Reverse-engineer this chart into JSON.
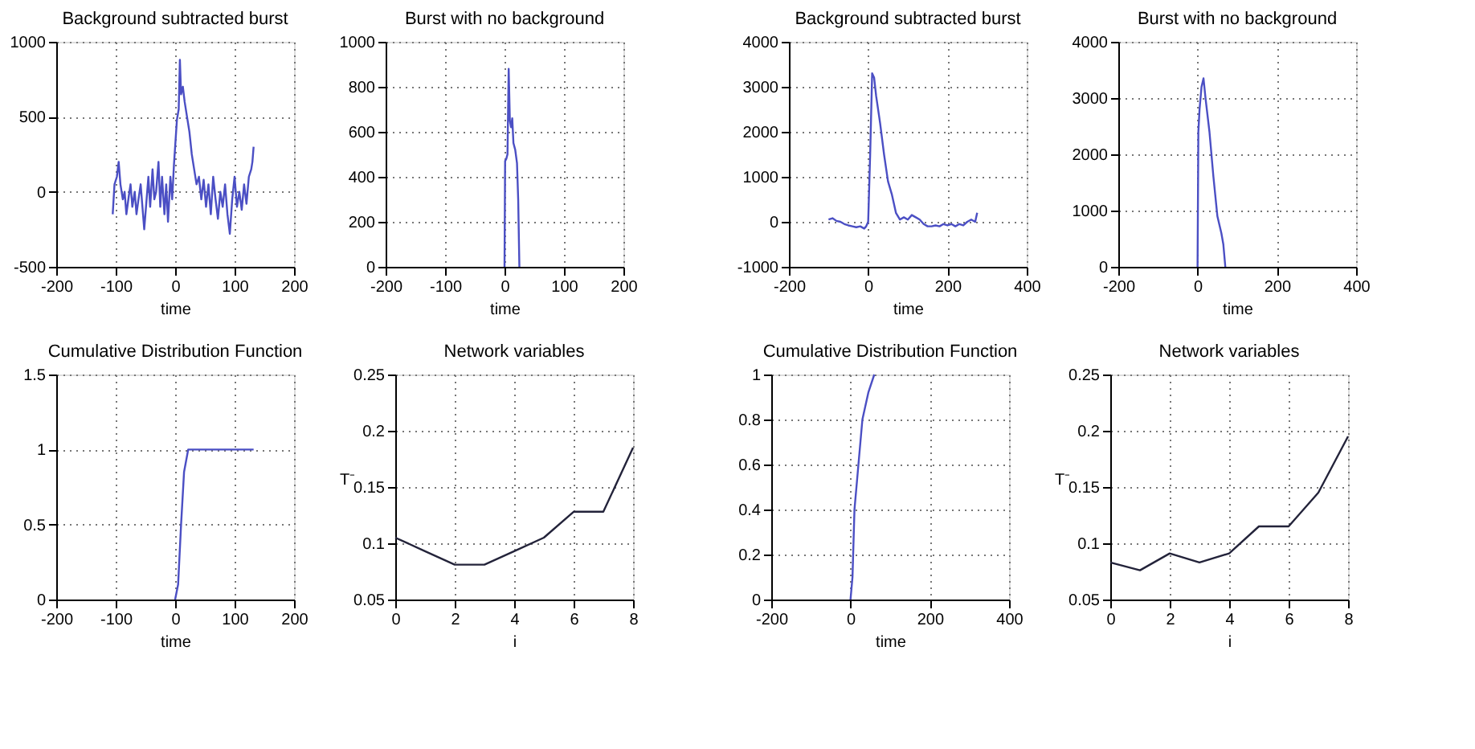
{
  "chart_data": [
    {
      "type": "line",
      "title": "Background subtracted burst",
      "xlabel": "time",
      "xlim": [
        -200,
        200
      ],
      "xticks": [
        -200,
        -100,
        0,
        100,
        200
      ],
      "ylim": [
        -500,
        1000
      ],
      "yticks": [
        -500,
        0,
        500,
        1000
      ],
      "grid": true,
      "series": [
        {
          "color": "#4b4fc4",
          "x": [
            -105,
            -102,
            -98,
            -95,
            -92,
            -88,
            -85,
            -82,
            -78,
            -75,
            -72,
            -68,
            -65,
            -62,
            -58,
            -55,
            -52,
            -48,
            -45,
            -42,
            -38,
            -35,
            -32,
            -28,
            -25,
            -22,
            -18,
            -15,
            -12,
            -8,
            -5,
            -2,
            0,
            3,
            6,
            8,
            10,
            13,
            16,
            20,
            24,
            28,
            32,
            36,
            40,
            44,
            48,
            52,
            56,
            60,
            64,
            68,
            72,
            76,
            80,
            84,
            88,
            92,
            96,
            100,
            104,
            108,
            112,
            116,
            120,
            124,
            128,
            130,
            132
          ],
          "values": [
            -150,
            50,
            100,
            200,
            50,
            -50,
            0,
            -150,
            -30,
            50,
            -100,
            0,
            -150,
            -60,
            50,
            -100,
            -250,
            -50,
            100,
            -100,
            150,
            -50,
            0,
            200,
            -100,
            100,
            -150,
            50,
            -200,
            100,
            -50,
            180,
            300,
            480,
            550,
            880,
            650,
            700,
            600,
            500,
            400,
            250,
            150,
            50,
            100,
            -50,
            80,
            -100,
            50,
            -150,
            100,
            -50,
            -180,
            0,
            -100,
            50,
            -150,
            -280,
            -50,
            100,
            -100,
            0,
            -120,
            50,
            -80,
            100,
            150,
            200,
            300
          ]
        }
      ]
    },
    {
      "type": "line",
      "title": "Burst with no background",
      "xlabel": "time",
      "xlim": [
        -200,
        200
      ],
      "xticks": [
        -200,
        -100,
        0,
        100,
        200
      ],
      "ylim": [
        0,
        1000
      ],
      "yticks": [
        0,
        200,
        400,
        600,
        800,
        1000
      ],
      "grid": true,
      "series": [
        {
          "color": "#4b4fc4",
          "x": [
            0,
            1,
            3,
            5,
            7,
            9,
            11,
            13,
            15,
            18,
            21,
            23,
            25
          ],
          "values": [
            0,
            470,
            480,
            500,
            880,
            650,
            620,
            660,
            550,
            520,
            460,
            300,
            0
          ]
        }
      ]
    },
    {
      "type": "line",
      "title": "Background subtracted burst",
      "xlabel": "time",
      "xlim": [
        -200,
        400
      ],
      "xticks": [
        -200,
        0,
        200,
        400
      ],
      "ylim": [
        -1000,
        4000
      ],
      "yticks": [
        -1000,
        0,
        1000,
        2000,
        3000,
        4000
      ],
      "grid": true,
      "series": [
        {
          "color": "#4b4fc4",
          "x": [
            -100,
            -90,
            -80,
            -70,
            -60,
            -50,
            -40,
            -30,
            -20,
            -10,
            -5,
            0,
            5,
            10,
            15,
            20,
            30,
            40,
            50,
            60,
            70,
            80,
            90,
            100,
            110,
            120,
            130,
            140,
            150,
            160,
            170,
            180,
            190,
            200,
            210,
            220,
            230,
            240,
            250,
            260,
            270,
            275
          ],
          "values": [
            50,
            80,
            20,
            0,
            -50,
            -80,
            -100,
            -120,
            -100,
            -150,
            -100,
            0,
            1500,
            3300,
            3200,
            2800,
            2200,
            1500,
            900,
            600,
            200,
            50,
            100,
            50,
            150,
            100,
            50,
            -50,
            -100,
            -100,
            -80,
            -100,
            -50,
            -80,
            -50,
            -100,
            -50,
            -80,
            0,
            50,
            0,
            200
          ]
        }
      ]
    },
    {
      "type": "line",
      "title": "Burst with no background",
      "xlabel": "time",
      "xlim": [
        -200,
        400
      ],
      "xticks": [
        -200,
        0,
        200,
        400
      ],
      "ylim": [
        0,
        4000
      ],
      "yticks": [
        0,
        1000,
        2000,
        3000,
        4000
      ],
      "grid": true,
      "series": [
        {
          "color": "#4b4fc4",
          "x": [
            0,
            2,
            5,
            10,
            15,
            20,
            30,
            40,
            50,
            60,
            65,
            70
          ],
          "values": [
            0,
            2400,
            2800,
            3200,
            3350,
            3000,
            2400,
            1600,
            900,
            600,
            400,
            0
          ]
        }
      ]
    },
    {
      "type": "line",
      "title": "Cumulative Distribution Function",
      "xlabel": "time",
      "xlim": [
        -200,
        200
      ],
      "xticks": [
        -200,
        -100,
        0,
        100,
        200
      ],
      "ylim": [
        0,
        1.5
      ],
      "yticks": [
        0,
        0.5,
        1,
        1.5
      ],
      "grid": true,
      "series": [
        {
          "color": "#4b4fc4",
          "x": [
            0,
            5,
            10,
            15,
            22,
            132
          ],
          "values": [
            0,
            0.1,
            0.5,
            0.85,
            1,
            1
          ]
        }
      ]
    },
    {
      "type": "line",
      "title": "Network variables",
      "xlabel": "i",
      "ylabel": "T⁻",
      "xlim": [
        0,
        8
      ],
      "xticks": [
        0,
        2,
        4,
        6,
        8
      ],
      "ylim": [
        0.05,
        0.25
      ],
      "yticks": [
        0.05,
        0.1,
        0.15,
        0.2,
        0.25
      ],
      "grid": true,
      "series": [
        {
          "color": "#23233a",
          "x": [
            0,
            1,
            2,
            3,
            4,
            5,
            6,
            7,
            8
          ],
          "values": [
            0.105,
            0.093,
            0.081,
            0.081,
            0.093,
            0.105,
            0.128,
            0.128,
            0.185
          ]
        }
      ]
    },
    {
      "type": "line",
      "title": "Cumulative Distribution Function",
      "xlabel": "time",
      "xlim": [
        -200,
        400
      ],
      "xticks": [
        -200,
        0,
        200,
        400
      ],
      "ylim": [
        0,
        1
      ],
      "yticks": [
        0,
        0.2,
        0.4,
        0.6,
        0.8,
        1
      ],
      "grid": true,
      "series": [
        {
          "color": "#4b4fc4",
          "x": [
            0,
            5,
            10,
            20,
            30,
            45,
            60
          ],
          "values": [
            0,
            0.1,
            0.4,
            0.6,
            0.8,
            0.92,
            1
          ]
        }
      ]
    },
    {
      "type": "line",
      "title": "Network variables",
      "xlabel": "i",
      "ylabel": "T⁻",
      "xlim": [
        0,
        8
      ],
      "xticks": [
        0,
        2,
        4,
        6,
        8
      ],
      "ylim": [
        0.05,
        0.25
      ],
      "yticks": [
        0.05,
        0.1,
        0.15,
        0.2,
        0.25
      ],
      "grid": true,
      "series": [
        {
          "color": "#23233a",
          "x": [
            0,
            1,
            2,
            3,
            4,
            5,
            6,
            7,
            8
          ],
          "values": [
            0.083,
            0.076,
            0.091,
            0.083,
            0.091,
            0.115,
            0.115,
            0.145,
            0.195
          ]
        }
      ]
    }
  ]
}
